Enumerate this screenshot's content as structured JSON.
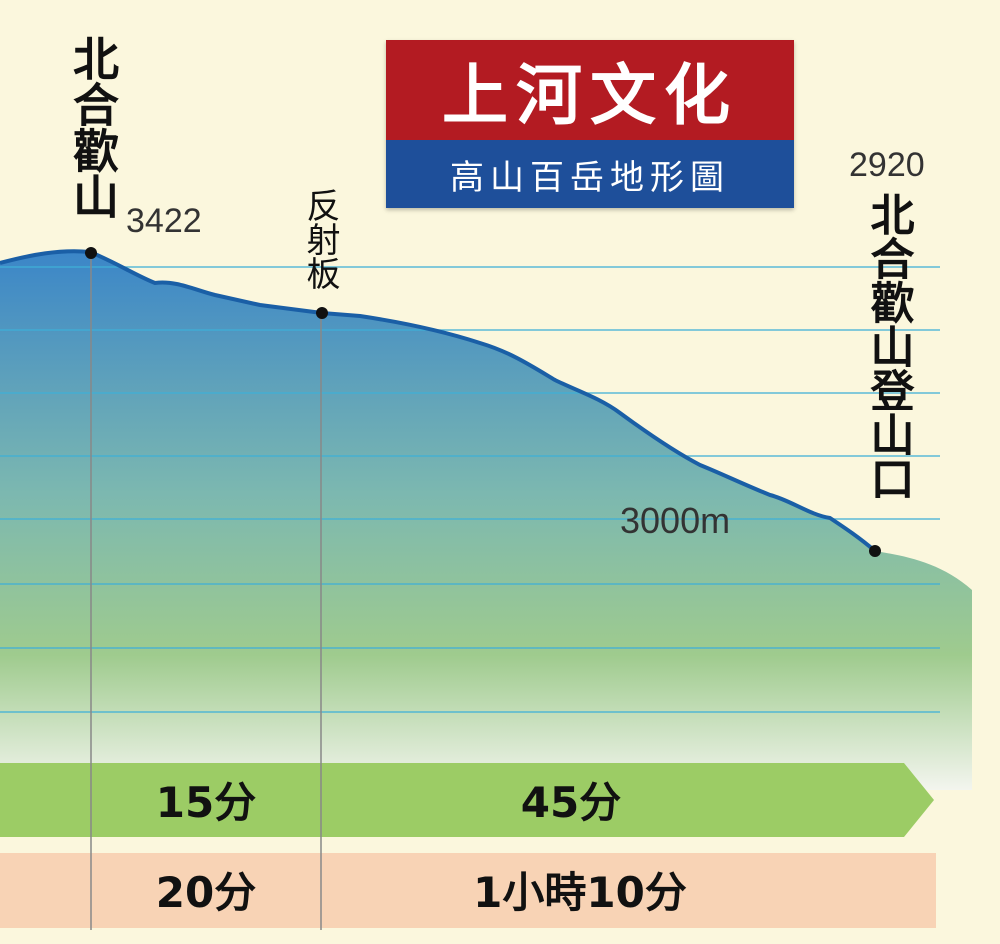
{
  "logo": {
    "publisher": "上河文化",
    "series": "高山百岳地形圖"
  },
  "waypoints": [
    {
      "name": "北合歡山",
      "elevation": "3422"
    },
    {
      "name": "反射板"
    },
    {
      "name": "北合歡山登山口",
      "elevation": "2920"
    }
  ],
  "contour_label": "3000m",
  "ascent_times": [
    "15分",
    "45分"
  ],
  "descent_times": [
    "20分",
    "1小時10分"
  ],
  "colors": {
    "profile_line": "#1a5fa6",
    "gridline": "#3fb0d8",
    "ascent_bar": "#9ccc65",
    "descent_bar": "#f8d3b5",
    "background": "#fbf7dd"
  }
}
